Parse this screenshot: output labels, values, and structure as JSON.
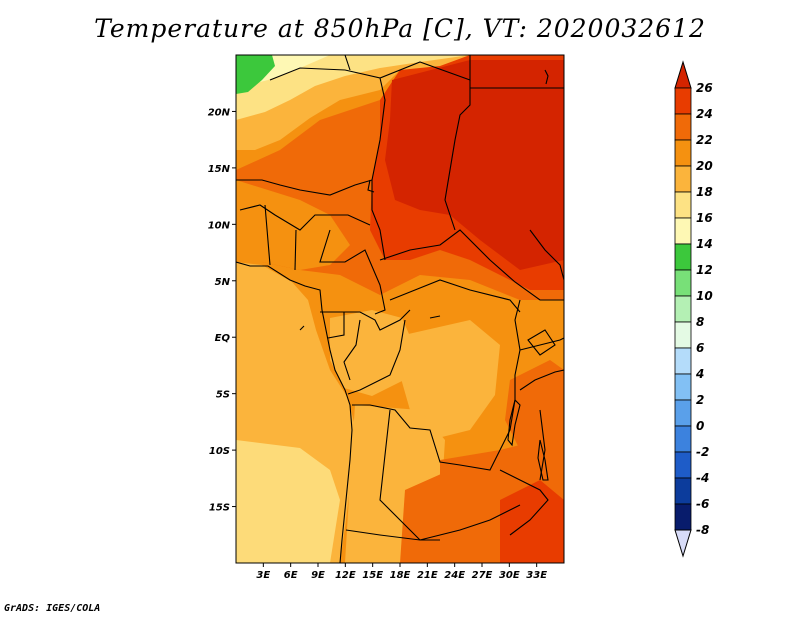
{
  "title": "Temperature at 850hPa [C], VT: 2020032612",
  "credit": "GrADS: IGES/COLA",
  "map": {
    "lon_range": [
      0,
      36
    ],
    "lat_range": [
      -20,
      25
    ],
    "lat_ticks": [
      {
        "value": 20,
        "label": "20N"
      },
      {
        "value": 15,
        "label": "15N"
      },
      {
        "value": 10,
        "label": "10N"
      },
      {
        "value": 5,
        "label": "5N"
      },
      {
        "value": 0,
        "label": "EQ"
      },
      {
        "value": -5,
        "label": "5S"
      },
      {
        "value": -10,
        "label": "10S"
      },
      {
        "value": -15,
        "label": "15S"
      }
    ],
    "lon_ticks": [
      {
        "value": 3,
        "label": "3E"
      },
      {
        "value": 6,
        "label": "6E"
      },
      {
        "value": 9,
        "label": "9E"
      },
      {
        "value": 12,
        "label": "12E"
      },
      {
        "value": 15,
        "label": "15E"
      },
      {
        "value": 18,
        "label": "18E"
      },
      {
        "value": 21,
        "label": "21E"
      },
      {
        "value": 24,
        "label": "24E"
      },
      {
        "value": 27,
        "label": "27E"
      },
      {
        "value": 30,
        "label": "30E"
      },
      {
        "value": 33,
        "label": "33E"
      }
    ]
  },
  "colorbar": {
    "levels": [
      "26",
      "24",
      "22",
      "20",
      "18",
      "16",
      "14",
      "12",
      "10",
      "8",
      "6",
      "4",
      "2",
      "0",
      "-2",
      "-4",
      "-6",
      "-8"
    ],
    "colors": [
      "#d42400",
      "#e83c00",
      "#f06a08",
      "#f59110",
      "#fbb43c",
      "#fde284",
      "#fef8b4",
      "#3cc83c",
      "#78e078",
      "#b4f0b4",
      "#e4fae4",
      "#b4dcfa",
      "#82c0f4",
      "#5aa0ea",
      "#3c82de",
      "#1e5cc8",
      "#0c3c9c",
      "#081c6c"
    ],
    "top_color": "#d42400",
    "bottom_color": "#d8dcf8"
  },
  "regions": [
    {
      "name": "sahara-band-light",
      "level": "16",
      "color": "#fde284"
    },
    {
      "name": "green-patch-nw",
      "level": "12",
      "color": "#3cc83c"
    },
    {
      "name": "sahel-orange",
      "level": "22",
      "color": "#f06a08"
    },
    {
      "name": "sudan-chad-hot",
      "level": "24",
      "color": "#e83c00"
    },
    {
      "name": "equatorial-orange",
      "level": "20",
      "color": "#f59110"
    },
    {
      "name": "angola-namibia-light",
      "level": "18",
      "color": "#fbb43c"
    }
  ]
}
